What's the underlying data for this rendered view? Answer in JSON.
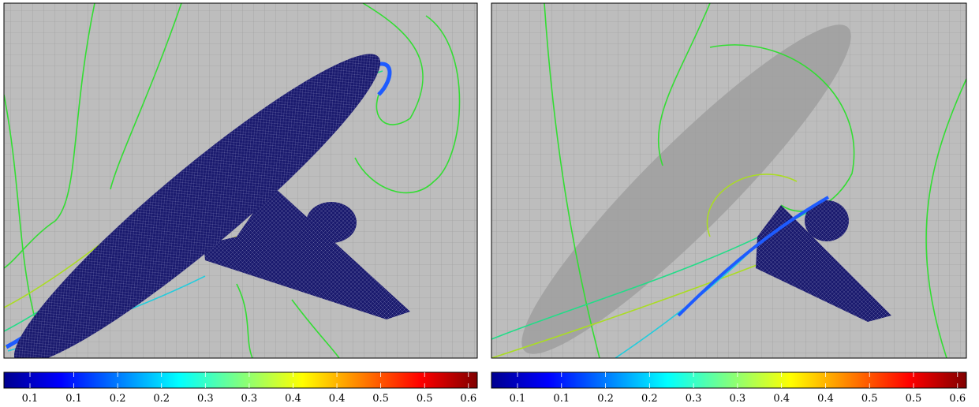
{
  "panels": [
    {
      "colorbar": {
        "ticks": [
          "0.1",
          "0.1",
          "0.2",
          "0.2",
          "0.3",
          "0.3",
          "0.4",
          "0.4",
          "0.5",
          "0.5",
          "0.6"
        ]
      }
    },
    {
      "colorbar": {
        "ticks": [
          "0.1",
          "0.1",
          "0.2",
          "0.2",
          "0.3",
          "0.3",
          "0.4",
          "0.4",
          "0.5",
          "0.5",
          "0.6"
        ]
      }
    }
  ]
}
